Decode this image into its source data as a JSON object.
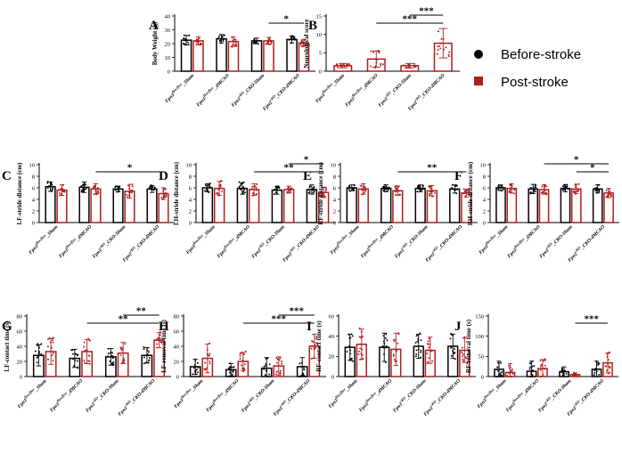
{
  "figure": {
    "legend": [
      {
        "label": "Before-stroke",
        "color": "#000000"
      },
      {
        "label": "Post-stroke",
        "color": "#b01c1c"
      }
    ],
    "colors": {
      "before": "#000000",
      "post": "#b01c1c"
    }
  },
  "chart_data": [
    {
      "panel": "A",
      "type": "bar",
      "ylabel": "Body Weight (g)",
      "ylim": [
        0,
        40
      ],
      "yticks": [
        0,
        10,
        20,
        30,
        40
      ],
      "categories": [
        "Fpn1flox/flox_Sham",
        "Fpn1flox/flox_dMCAO",
        "Fpn1cKO_CKO-Sham",
        "Fpn1cKO_CKO-dMCAO"
      ],
      "series": [
        {
          "name": "Before-stroke",
          "values": [
            22.5,
            23.5,
            22.0,
            23.0
          ],
          "errors": [
            3.5,
            3.0,
            2.0,
            2.5
          ]
        },
        {
          "name": "Post-stroke",
          "values": [
            22.0,
            21.5,
            22.0,
            20.5
          ],
          "errors": [
            3.0,
            3.5,
            2.5,
            2.5
          ]
        }
      ],
      "significance": [
        {
          "from": 2.2,
          "to": 3.2,
          "label": "*"
        }
      ]
    },
    {
      "panel": "B",
      "type": "bar",
      "ylabel": "Neurological score",
      "ylim": [
        0,
        15
      ],
      "yticks": [
        0,
        5,
        10,
        15
      ],
      "categories": [
        "Fpn1flox/flox_Sham",
        "Fpn1flox/flox_dMCAO",
        "Fpn1cKO_CKO-Sham",
        "Fpn1cKO_CKO-dMCAO"
      ],
      "series": [
        {
          "name": "Post-stroke",
          "values": [
            1.5,
            3.3,
            1.5,
            7.6
          ],
          "errors": [
            0.6,
            2.2,
            0.6,
            4.0
          ]
        }
      ],
      "significance": [
        {
          "from": 1,
          "to": 3,
          "label": "***"
        },
        {
          "from": 2,
          "to": 3,
          "label": "***"
        }
      ]
    },
    {
      "panel": "C",
      "type": "bar",
      "ylabel": "LF-stride distance (cm)",
      "ylim": [
        0,
        10
      ],
      "yticks": [
        0,
        2,
        4,
        6,
        8,
        10
      ],
      "categories": [
        "Fpn1flox/flox_Sham",
        "Fpn1flox/flox_dMCAO",
        "Fpn1cKO_CKO-Sham",
        "Fpn1cKO_CKO-dMCAO"
      ],
      "series": [
        {
          "name": "Before-stroke",
          "values": [
            6.2,
            6.1,
            5.8,
            5.8
          ],
          "errors": [
            0.8,
            0.9,
            0.5,
            0.6
          ]
        },
        {
          "name": "Post-stroke",
          "values": [
            5.6,
            5.8,
            5.4,
            5.0
          ],
          "errors": [
            0.9,
            0.9,
            1.2,
            1.0
          ]
        }
      ],
      "significance": [
        {
          "from": 1.2,
          "to": 3.2,
          "label": "*"
        }
      ]
    },
    {
      "panel": "D",
      "type": "bar",
      "ylabel": "LH-stride distance (cm)",
      "ylim": [
        0,
        10
      ],
      "yticks": [
        0,
        2,
        4,
        6,
        8,
        10
      ],
      "categories": [
        "Fpn1flox/flox_Sham",
        "Fpn1flox/flox_dMCAO",
        "Fpn1cKO_CKO-Sham",
        "Fpn1cKO_CKO-dMCAO"
      ],
      "series": [
        {
          "name": "Before-stroke",
          "values": [
            6.0,
            5.9,
            5.6,
            5.7
          ],
          "errors": [
            0.7,
            1.0,
            0.7,
            0.8
          ]
        },
        {
          "name": "Post-stroke",
          "values": [
            5.9,
            5.7,
            5.7,
            5.2
          ],
          "errors": [
            1.2,
            1.0,
            0.6,
            0.9
          ]
        }
      ],
      "significance": [
        {
          "from": 1.2,
          "to": 3.2,
          "label": "**"
        },
        {
          "from": 2.2,
          "to": 3.2,
          "label": "*"
        }
      ]
    },
    {
      "panel": "E",
      "type": "bar",
      "ylabel": "RF-stride distance (cm)",
      "ylim": [
        0,
        10
      ],
      "yticks": [
        0,
        2,
        4,
        6,
        8,
        10
      ],
      "categories": [
        "Fpn1flox/flox_Sham",
        "Fpn1flox/flox_dMCAO",
        "Fpn1cKO_CKO-Sham",
        "Fpn1cKO_CKO-dMCAO"
      ],
      "series": [
        {
          "name": "Before-stroke",
          "values": [
            6.0,
            5.9,
            5.9,
            5.8
          ],
          "errors": [
            0.5,
            0.6,
            0.6,
            0.7
          ]
        },
        {
          "name": "Post-stroke",
          "values": [
            5.8,
            5.5,
            5.5,
            5.1
          ],
          "errors": [
            0.9,
            0.8,
            0.9,
            0.7
          ]
        }
      ],
      "significance": [
        {
          "from": 1.2,
          "to": 3.2,
          "label": "**"
        }
      ]
    },
    {
      "panel": "F",
      "type": "bar",
      "ylabel": "RH-stride distance (cm)",
      "ylim": [
        0,
        10
      ],
      "yticks": [
        0,
        2,
        4,
        6,
        8,
        10
      ],
      "categories": [
        "Fpn1flox/flox_Sham",
        "Fpn1flox/flox_dMCAO",
        "Fpn1cKO_CKO-Sham",
        "Fpn1cKO_CKO-dMCAO"
      ],
      "series": [
        {
          "name": "Before-stroke",
          "values": [
            6.0,
            5.8,
            5.9,
            5.8
          ],
          "errors": [
            0.5,
            0.8,
            0.6,
            0.7
          ]
        },
        {
          "name": "Post-stroke",
          "values": [
            5.9,
            5.7,
            5.8,
            5.1
          ],
          "errors": [
            0.8,
            0.8,
            0.8,
            0.8
          ]
        }
      ],
      "significance": [
        {
          "from": 2.2,
          "to": 3.2,
          "label": "*"
        },
        {
          "from": 1.2,
          "to": 3.2,
          "label": "*"
        }
      ]
    },
    {
      "panel": "G",
      "type": "bar",
      "ylabel": "LF-contact time (s)",
      "ylim": [
        0,
        80
      ],
      "yticks": [
        0,
        20,
        40,
        60,
        80
      ],
      "categories": [
        "Fpn1flox/flox_Sham",
        "Fpn1flox/flox_dMCAO",
        "Fpn1cKO_CKO-Sham",
        "Fpn1cKO_CKO-dMCAO"
      ],
      "series": [
        {
          "name": "Before-stroke",
          "values": [
            28,
            24,
            26,
            28
          ],
          "errors": [
            14,
            12,
            11,
            10
          ]
        },
        {
          "name": "Post-stroke",
          "values": [
            33,
            33,
            31,
            48
          ],
          "errors": [
            17,
            16,
            14,
            10
          ]
        }
      ],
      "significance": [
        {
          "from": 1.2,
          "to": 3.2,
          "label": "**"
        },
        {
          "from": 2.2,
          "to": 3.2,
          "label": "**"
        }
      ]
    },
    {
      "panel": "H",
      "type": "bar",
      "ylabel": "LF-removal time (s)",
      "ylim": [
        0,
        80
      ],
      "yticks": [
        0,
        20,
        40,
        60,
        80
      ],
      "categories": [
        "Fpn1flox/flox_Sham",
        "Fpn1flox/flox_dMCAO",
        "Fpn1cKO_CKO-Sham",
        "Fpn1cKO_CKO-dMCAO"
      ],
      "series": [
        {
          "name": "Before-stroke",
          "values": [
            13,
            9,
            11,
            13
          ],
          "errors": [
            10,
            8,
            14,
            12
          ]
        },
        {
          "name": "Post-stroke",
          "values": [
            24,
            20,
            14,
            40
          ],
          "errors": [
            19,
            12,
            12,
            16
          ]
        }
      ],
      "significance": [
        {
          "from": 1.2,
          "to": 3.2,
          "label": "***"
        },
        {
          "from": 2.2,
          "to": 3.2,
          "label": "***"
        }
      ]
    },
    {
      "panel": "I",
      "type": "bar",
      "ylabel": "RF-contact time (s)",
      "ylim": [
        0,
        60
      ],
      "yticks": [
        0,
        20,
        40,
        60
      ],
      "categories": [
        "Fpn1flox/flox_Sham",
        "Fpn1flox/flox_dMCAO",
        "Fpn1cKO_CKO-Sham",
        "Fpn1cKO_CKO-dMCAO"
      ],
      "series": [
        {
          "name": "Before-stroke",
          "values": [
            29,
            29,
            30,
            30
          ],
          "errors": [
            13,
            14,
            12,
            12
          ]
        },
        {
          "name": "Post-stroke",
          "values": [
            32,
            27,
            26,
            26
          ],
          "errors": [
            15,
            16,
            13,
            12
          ]
        }
      ],
      "significance": []
    },
    {
      "panel": "J",
      "type": "bar",
      "ylabel": "RF-removal time (s)",
      "ylim": [
        0,
        150
      ],
      "yticks": [
        0,
        50,
        100,
        150
      ],
      "categories": [
        "Fpn1flox/flox_Sham",
        "Fpn1flox/flox_dMCAO",
        "Fpn1cKO_CKO-Sham",
        "Fpn1cKO_CKO-dMCAO"
      ],
      "series": [
        {
          "name": "Before-stroke",
          "values": [
            18,
            13,
            12,
            18
          ],
          "errors": [
            20,
            25,
            12,
            20
          ]
        },
        {
          "name": "Post-stroke",
          "values": [
            10,
            20,
            5,
            34
          ],
          "errors": [
            22,
            22,
            4,
            25
          ]
        }
      ],
      "significance": [
        {
          "from": 2.2,
          "to": 3.2,
          "label": "***"
        }
      ]
    }
  ]
}
